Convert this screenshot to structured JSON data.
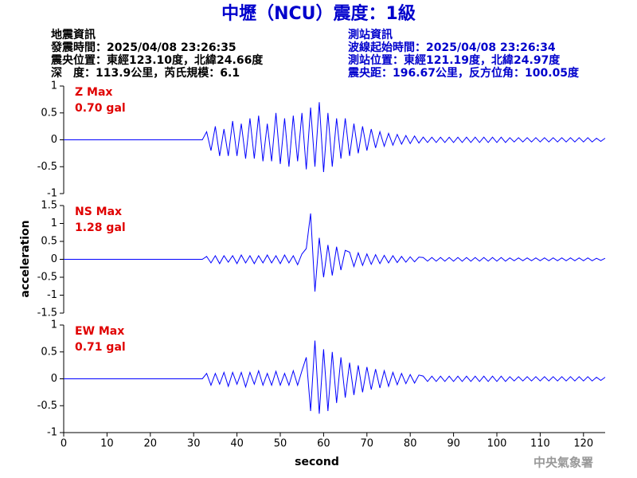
{
  "header": {
    "title": "中壢（NCU）震度：1級",
    "left": [
      "地震資訊",
      "發震時間：2025/04/08 23:26:35",
      "震央位置：東經123.10度，北緯24.66度",
      "深　度：113.9公里，芮氏規模：6.1"
    ],
    "right": [
      "測站資訊",
      "波線起始時間：2025/04/08 23:26:34",
      "測站位置：東經121.19度，北緯24.97度",
      "震央距：196.67公里，反方位角：100.05度"
    ]
  },
  "footer": "中央氣象署",
  "chart_data": [
    {
      "type": "line",
      "annotations": [
        "Z Max",
        "0.70 gal"
      ],
      "color": "#0000ff",
      "xlim": [
        0,
        125
      ],
      "ylim": [
        -1,
        1
      ],
      "yticks": [
        1,
        0.5,
        0,
        -0.5,
        -1
      ],
      "x": [
        0,
        1,
        2,
        3,
        4,
        5,
        6,
        7,
        8,
        9,
        10,
        11,
        12,
        13,
        14,
        15,
        16,
        17,
        18,
        19,
        20,
        21,
        22,
        23,
        24,
        25,
        26,
        27,
        28,
        29,
        30,
        31,
        32,
        33,
        34,
        35,
        36,
        37,
        38,
        39,
        40,
        41,
        42,
        43,
        44,
        45,
        46,
        47,
        48,
        49,
        50,
        51,
        52,
        53,
        54,
        55,
        56,
        57,
        58,
        59,
        60,
        61,
        62,
        63,
        64,
        65,
        66,
        67,
        68,
        69,
        70,
        71,
        72,
        73,
        74,
        75,
        76,
        77,
        78,
        79,
        80,
        81,
        82,
        83,
        84,
        85,
        86,
        87,
        88,
        89,
        90,
        91,
        92,
        93,
        94,
        95,
        96,
        97,
        98,
        99,
        100,
        101,
        102,
        103,
        104,
        105,
        106,
        107,
        108,
        109,
        110,
        111,
        112,
        113,
        114,
        115,
        116,
        117,
        118,
        119,
        120,
        121,
        122,
        123,
        124,
        125
      ],
      "values": [
        0,
        0,
        0,
        0,
        0,
        0,
        0,
        0,
        0,
        0,
        0,
        0,
        0,
        0,
        0,
        0,
        0,
        0,
        0,
        0,
        0,
        0,
        0,
        0,
        0,
        0,
        0,
        0,
        0,
        0,
        0,
        0,
        0,
        0.15,
        -0.2,
        0.25,
        -0.3,
        0.2,
        -0.3,
        0.35,
        -0.3,
        0.3,
        -0.35,
        0.4,
        -0.35,
        0.45,
        -0.4,
        0.3,
        -0.4,
        0.5,
        -0.45,
        0.4,
        -0.5,
        0.45,
        -0.4,
        0.5,
        -0.55,
        0.6,
        -0.5,
        0.7,
        -0.6,
        0.5,
        -0.5,
        0.4,
        -0.35,
        0.4,
        -0.3,
        0.3,
        -0.25,
        0.25,
        -0.2,
        0.2,
        -0.15,
        0.15,
        -0.12,
        0.12,
        -0.1,
        0.1,
        -0.08,
        0.08,
        -0.07,
        0.07,
        -0.06,
        0.05,
        -0.05,
        0.05,
        -0.05,
        0.05,
        -0.05,
        0.05,
        -0.05,
        0.05,
        -0.05,
        0.05,
        -0.05,
        0.05,
        -0.05,
        0.05,
        -0.05,
        0.05,
        -0.05,
        0.05,
        -0.05,
        0.04,
        -0.04,
        0.04,
        -0.04,
        0.04,
        -0.04,
        0.04,
        -0.04,
        0.04,
        -0.04,
        0.04,
        -0.04,
        0.04,
        -0.04,
        0.04,
        -0.04,
        0.04,
        -0.04,
        0.04,
        -0.04,
        0.03,
        -0.03,
        0.03
      ]
    },
    {
      "type": "line",
      "annotations": [
        "NS Max",
        "1.28 gal"
      ],
      "color": "#0000ff",
      "ylabel": "acceleration",
      "xlim": [
        0,
        125
      ],
      "ylim": [
        -1.5,
        1.5
      ],
      "yticks": [
        1.5,
        1,
        0.5,
        0,
        -0.5,
        -1,
        -1.5
      ],
      "x": [
        0,
        1,
        2,
        3,
        4,
        5,
        6,
        7,
        8,
        9,
        10,
        11,
        12,
        13,
        14,
        15,
        16,
        17,
        18,
        19,
        20,
        21,
        22,
        23,
        24,
        25,
        26,
        27,
        28,
        29,
        30,
        31,
        32,
        33,
        34,
        35,
        36,
        37,
        38,
        39,
        40,
        41,
        42,
        43,
        44,
        45,
        46,
        47,
        48,
        49,
        50,
        51,
        52,
        53,
        54,
        55,
        56,
        57,
        58,
        59,
        60,
        61,
        62,
        63,
        64,
        65,
        66,
        67,
        68,
        69,
        70,
        71,
        72,
        73,
        74,
        75,
        76,
        77,
        78,
        79,
        80,
        81,
        82,
        83,
        84,
        85,
        86,
        87,
        88,
        89,
        90,
        91,
        92,
        93,
        94,
        95,
        96,
        97,
        98,
        99,
        100,
        101,
        102,
        103,
        104,
        105,
        106,
        107,
        108,
        109,
        110,
        111,
        112,
        113,
        114,
        115,
        116,
        117,
        118,
        119,
        120,
        121,
        122,
        123,
        124,
        125
      ],
      "values": [
        0,
        0,
        0,
        0,
        0,
        0,
        0,
        0,
        0,
        0,
        0,
        0,
        0,
        0,
        0,
        0,
        0,
        0,
        0,
        0,
        0,
        0,
        0,
        0,
        0,
        0,
        0,
        0,
        0,
        0,
        0,
        0,
        0,
        0.08,
        -0.1,
        0.1,
        -0.12,
        0.1,
        -0.08,
        0.1,
        -0.12,
        0.12,
        -0.1,
        0.1,
        -0.12,
        0.1,
        -0.1,
        0.12,
        -0.1,
        0.1,
        -0.12,
        0.12,
        -0.1,
        0.1,
        -0.15,
        0.15,
        0.3,
        1.28,
        -0.9,
        0.6,
        -0.5,
        0.4,
        -0.45,
        0.35,
        -0.3,
        0.25,
        0.2,
        -0.2,
        0.18,
        -0.17,
        0.15,
        -0.14,
        0.13,
        -0.12,
        0.11,
        -0.1,
        0.1,
        -0.09,
        0.08,
        -0.08,
        0.07,
        -0.07,
        0.06,
        0.05,
        -0.05,
        0.05,
        -0.05,
        0.05,
        -0.05,
        0.05,
        -0.05,
        0.05,
        -0.05,
        0.05,
        -0.05,
        0.05,
        -0.05,
        0.05,
        -0.05,
        0.05,
        -0.05,
        0.05,
        -0.05,
        0.04,
        -0.04,
        0.04,
        -0.04,
        0.04,
        -0.04,
        0.04,
        -0.04,
        0.04,
        -0.04,
        0.04,
        -0.04,
        0.04,
        -0.04,
        0.04,
        -0.04,
        0.04,
        -0.04,
        0.04,
        -0.04,
        0.03,
        -0.03,
        0.03
      ]
    },
    {
      "type": "line",
      "annotations": [
        "EW Max",
        "0.71 gal"
      ],
      "color": "#0000ff",
      "xlabel": "second",
      "xlim": [
        0,
        125
      ],
      "xticks": [
        0,
        10,
        20,
        30,
        40,
        50,
        60,
        70,
        80,
        90,
        100,
        110,
        120
      ],
      "ylim": [
        -1,
        1
      ],
      "yticks": [
        1,
        0.5,
        0,
        -0.5,
        -1
      ],
      "x": [
        0,
        1,
        2,
        3,
        4,
        5,
        6,
        7,
        8,
        9,
        10,
        11,
        12,
        13,
        14,
        15,
        16,
        17,
        18,
        19,
        20,
        21,
        22,
        23,
        24,
        25,
        26,
        27,
        28,
        29,
        30,
        31,
        32,
        33,
        34,
        35,
        36,
        37,
        38,
        39,
        40,
        41,
        42,
        43,
        44,
        45,
        46,
        47,
        48,
        49,
        50,
        51,
        52,
        53,
        54,
        55,
        56,
        57,
        58,
        59,
        60,
        61,
        62,
        63,
        64,
        65,
        66,
        67,
        68,
        69,
        70,
        71,
        72,
        73,
        74,
        75,
        76,
        77,
        78,
        79,
        80,
        81,
        82,
        83,
        84,
        85,
        86,
        87,
        88,
        89,
        90,
        91,
        92,
        93,
        94,
        95,
        96,
        97,
        98,
        99,
        100,
        101,
        102,
        103,
        104,
        105,
        106,
        107,
        108,
        109,
        110,
        111,
        112,
        113,
        114,
        115,
        116,
        117,
        118,
        119,
        120,
        121,
        122,
        123,
        124,
        125
      ],
      "values": [
        0,
        0,
        0,
        0,
        0,
        0,
        0,
        0,
        0,
        0,
        0,
        0,
        0,
        0,
        0,
        0,
        0,
        0,
        0,
        0,
        0,
        0,
        0,
        0,
        0,
        0,
        0,
        0,
        0,
        0,
        0,
        0,
        0,
        0.1,
        -0.12,
        0.1,
        -0.1,
        0.12,
        -0.14,
        0.12,
        -0.1,
        0.12,
        -0.15,
        0.12,
        -0.1,
        0.15,
        -0.12,
        0.1,
        -0.12,
        0.14,
        -0.12,
        0.1,
        -0.12,
        0.15,
        -0.12,
        0.15,
        0.4,
        -0.6,
        0.71,
        -0.65,
        0.55,
        -0.6,
        0.5,
        -0.45,
        0.4,
        -0.35,
        0.3,
        -0.3,
        0.25,
        -0.25,
        0.22,
        -0.2,
        0.18,
        -0.17,
        0.15,
        -0.14,
        0.12,
        -0.11,
        0.1,
        -0.09,
        0.08,
        -0.08,
        0.07,
        0.05,
        -0.05,
        0.05,
        -0.05,
        0.05,
        -0.05,
        0.05,
        -0.05,
        0.05,
        -0.05,
        0.05,
        -0.05,
        0.05,
        -0.05,
        0.05,
        -0.05,
        0.05,
        -0.05,
        0.05,
        -0.05,
        0.04,
        -0.04,
        0.04,
        -0.04,
        0.04,
        -0.04,
        0.04,
        -0.04,
        0.04,
        -0.04,
        0.04,
        -0.04,
        0.04,
        -0.04,
        0.04,
        -0.04,
        0.04,
        -0.04,
        0.04,
        -0.04,
        0.03,
        -0.03,
        0.03
      ]
    }
  ]
}
